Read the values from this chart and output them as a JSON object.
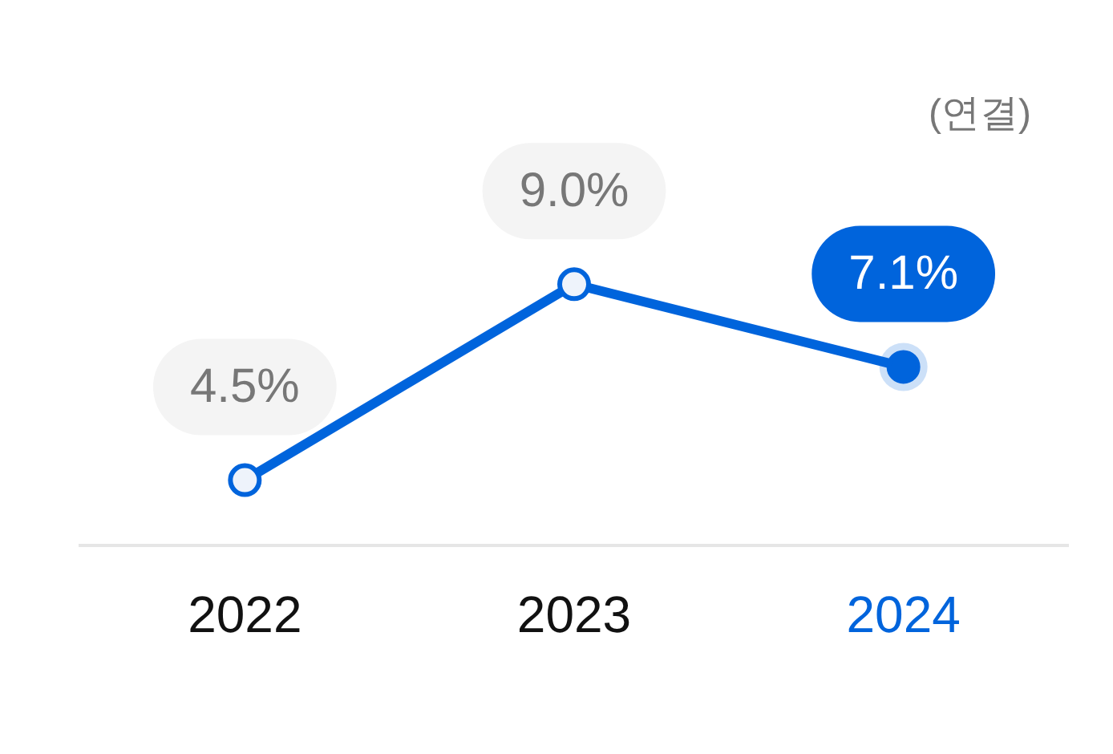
{
  "chart_data": {
    "type": "line",
    "categories": [
      "2022",
      "2023",
      "2024"
    ],
    "series": [
      {
        "color": "#0064dc",
        "values": [
          4.5,
          9.0,
          7.1
        ],
        "value_labels": [
          "4.5%",
          "9.0%",
          "7.1%"
        ]
      }
    ],
    "marker": "circle",
    "grid": false,
    "legend": false,
    "annotations": [
      "(연결)"
    ]
  }
}
